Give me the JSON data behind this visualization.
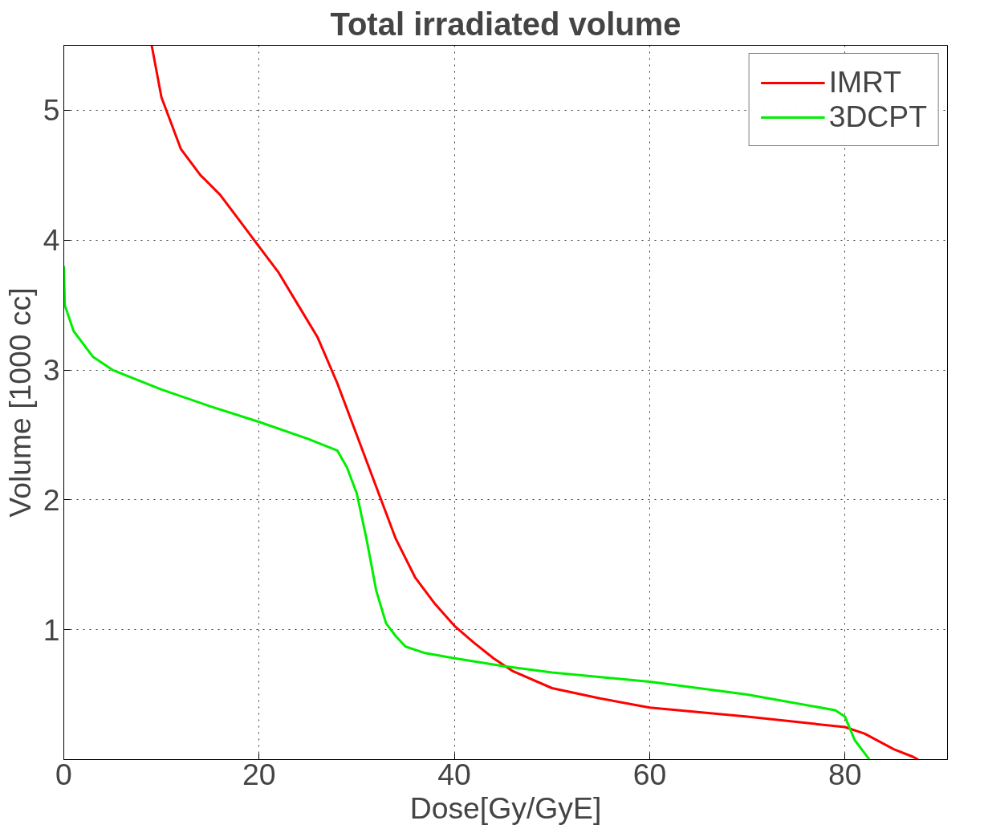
{
  "chart_data": {
    "type": "line",
    "title": "Total irradiated volume",
    "xlabel": "Dose[Gy/GyE]",
    "ylabel": "Volume [1000 cc]",
    "xlim": [
      0,
      90.5
    ],
    "ylim": [
      0,
      5.5
    ],
    "xticks": [
      0,
      20,
      40,
      60,
      80
    ],
    "yticks": [
      1,
      2,
      3,
      4,
      5
    ],
    "grid": true,
    "legend": "top right",
    "line_style": "solid",
    "series": [
      {
        "name": "IMRT",
        "color": "#ff0000",
        "x": [
          9,
          10,
          12,
          14,
          16,
          18,
          20,
          22,
          24,
          26,
          28,
          30,
          32,
          34,
          36,
          38,
          40,
          42,
          44,
          46,
          50,
          55,
          60,
          70,
          80,
          82,
          85,
          87,
          87.5
        ],
        "values": [
          5.5,
          5.1,
          4.7,
          4.5,
          4.35,
          4.15,
          3.95,
          3.75,
          3.5,
          3.25,
          2.9,
          2.5,
          2.1,
          1.7,
          1.4,
          1.2,
          1.03,
          0.9,
          0.78,
          0.68,
          0.55,
          0.47,
          0.4,
          0.33,
          0.25,
          0.2,
          0.08,
          0.02,
          0
        ]
      },
      {
        "name": "3DCPT",
        "color": "#00ee00",
        "x": [
          0,
          0.1,
          1,
          3,
          5,
          10,
          15,
          20,
          25,
          28,
          29,
          30,
          31,
          32,
          33,
          34,
          35,
          37,
          40,
          45,
          50,
          60,
          70,
          79,
          80,
          81,
          82,
          82.5
        ],
        "values": [
          3.8,
          3.5,
          3.3,
          3.1,
          3.0,
          2.85,
          2.72,
          2.6,
          2.47,
          2.38,
          2.25,
          2.05,
          1.7,
          1.3,
          1.05,
          0.95,
          0.87,
          0.82,
          0.78,
          0.72,
          0.67,
          0.6,
          0.5,
          0.38,
          0.33,
          0.15,
          0.05,
          0
        ]
      }
    ]
  }
}
